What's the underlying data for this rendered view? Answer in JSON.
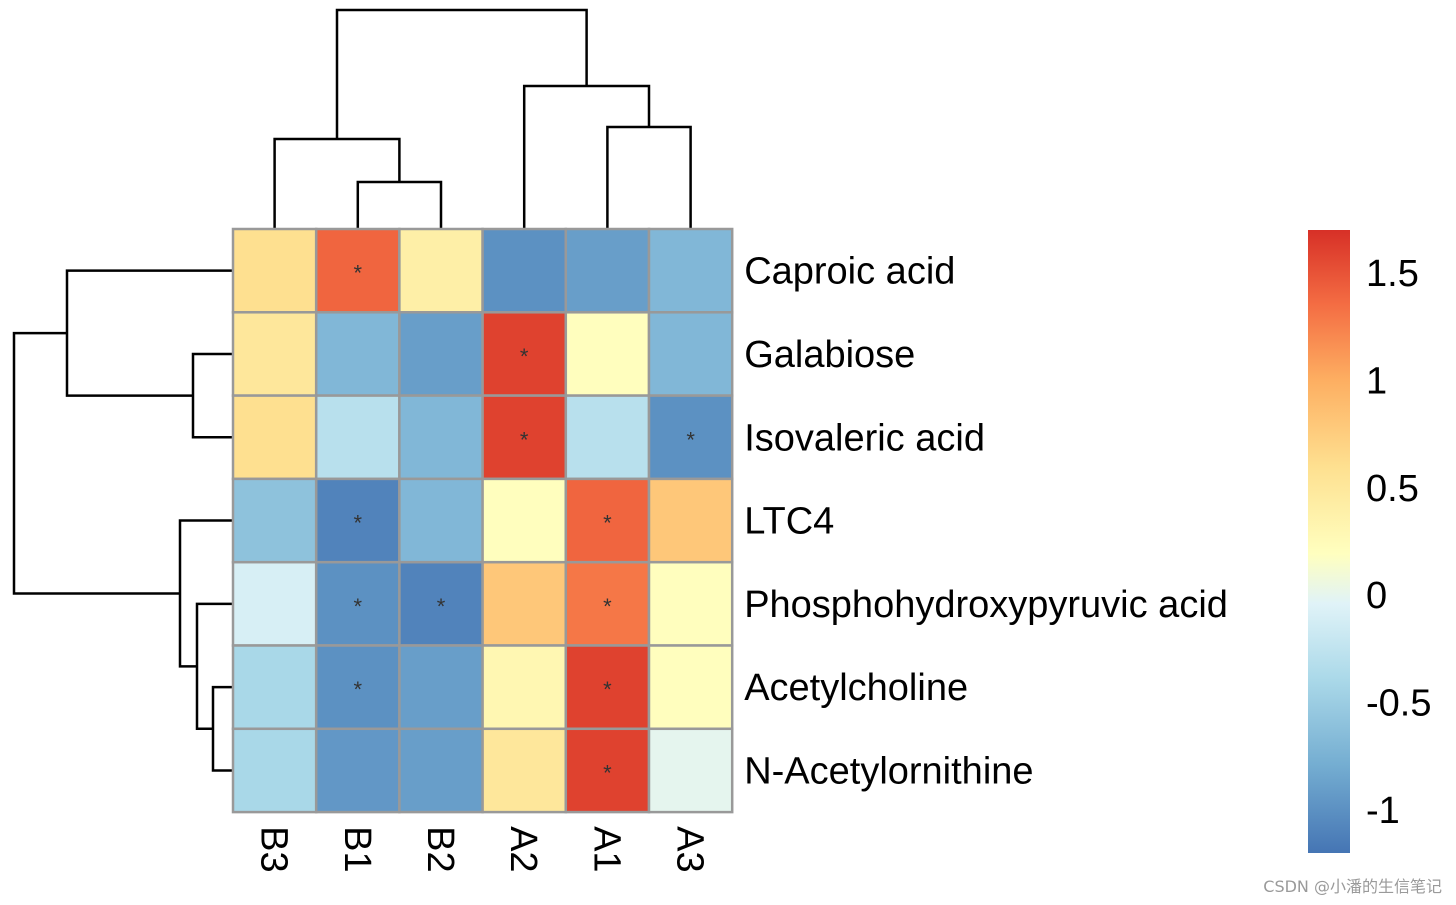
{
  "chart_data": {
    "type": "heatmap",
    "rows": [
      "Caproic acid",
      "Galabiose",
      "Isovaleric acid",
      "LTC4",
      "Phosphohydroxypyruvic acid",
      "Acetylcholine",
      "N-Acetylornithine"
    ],
    "columns": [
      "B3",
      "B1",
      "B2",
      "A2",
      "A1",
      "A3"
    ],
    "values": [
      [
        0.6,
        1.4,
        0.4,
        -1.0,
        -0.9,
        -0.7
      ],
      [
        0.5,
        -0.7,
        -0.9,
        1.6,
        0.2,
        -0.7
      ],
      [
        0.6,
        -0.3,
        -0.7,
        1.6,
        -0.3,
        -1.0
      ],
      [
        -0.6,
        -1.1,
        -0.7,
        0.2,
        1.4,
        0.8
      ],
      [
        -0.1,
        -1.0,
        -1.1,
        0.8,
        1.3,
        0.2
      ],
      [
        -0.4,
        -1.0,
        -0.9,
        0.3,
        1.6,
        0.2
      ],
      [
        -0.4,
        -0.95,
        -0.9,
        0.5,
        1.6,
        0.0
      ]
    ],
    "significant": [
      [
        false,
        true,
        false,
        false,
        false,
        false
      ],
      [
        false,
        false,
        false,
        true,
        false,
        false
      ],
      [
        false,
        false,
        false,
        true,
        false,
        true
      ],
      [
        false,
        true,
        false,
        false,
        true,
        false
      ],
      [
        false,
        true,
        true,
        false,
        true,
        false
      ],
      [
        false,
        true,
        false,
        false,
        true,
        false
      ],
      [
        false,
        false,
        false,
        false,
        true,
        false
      ]
    ],
    "significance_mark": "*",
    "color_scale": {
      "min": -1.2,
      "max": 1.7,
      "low_color": "#4575b4",
      "mid_color": "#ffffbf",
      "high_color": "#d73027",
      "ticks": [
        1.5,
        1,
        0.5,
        0,
        -0.5,
        -1
      ],
      "tick_labels": [
        "1.5",
        "1",
        "0.5",
        "0",
        "-0.5",
        "-1"
      ]
    },
    "row_dendrogram": "((Caproic acid,(Galabiose,Isovaleric acid)),(LTC4,(Phosphohydroxypyruvic acid,(Acetylcholine,N-Acetylornithine))))",
    "column_dendrogram": "((B3,(B1,B2)),(A2,(A1,A3)))",
    "grid": true,
    "legend_placement": "right"
  },
  "watermark": "CSDN @小潘的生信笔记"
}
